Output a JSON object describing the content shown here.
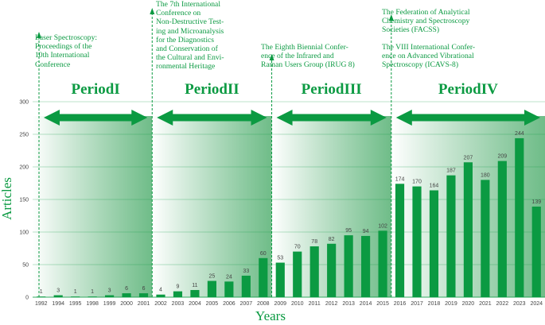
{
  "chart_data": {
    "type": "bar",
    "xlabel": "Years",
    "ylabel": "Articles",
    "ylim": [
      0,
      300
    ],
    "yticks": [
      0,
      50,
      100,
      150,
      200,
      250,
      300
    ],
    "grid": true,
    "categories": [
      "1992",
      "1994",
      "1995",
      "1998",
      "1999",
      "2000",
      "2001",
      "2002",
      "2003",
      "2004",
      "2005",
      "2006",
      "2007",
      "2008",
      "2009",
      "2010",
      "2011",
      "2012",
      "2013",
      "2014",
      "2015",
      "2016",
      "2017",
      "2018",
      "2019",
      "2020",
      "2021",
      "2022",
      "2023",
      "2024"
    ],
    "values": [
      1,
      3,
      1,
      1,
      3,
      6,
      6,
      4,
      9,
      11,
      25,
      24,
      33,
      60,
      53,
      70,
      78,
      82,
      95,
      94,
      102,
      174,
      170,
      164,
      187,
      207,
      180,
      209,
      244,
      139
    ],
    "bar_color": "#0b9a42",
    "periods": [
      {
        "label": "PeriodI",
        "start_index": 0,
        "end_index": 6
      },
      {
        "label": "PeriodII",
        "start_index": 7,
        "end_index": 13
      },
      {
        "label": "PeriodIII",
        "start_index": 14,
        "end_index": 20
      },
      {
        "label": "PeriodIV",
        "start_index": 21,
        "end_index": 29
      }
    ]
  },
  "annotations": {
    "a1": "Laser Spectroscopy:\nProceedings of the\n10th International\nConference",
    "a2": "The 7th International\nConference on\nNon-Destructive Test-\ning and Microanalysis\nfor the Diagnostics\nand Conservation of\nthe Cultural and Envi-\nronmental Heritage",
    "a3": "The Eighth Biennial Confer-\nence of the Infrared and\nRaman Users Group (IRUG 8)",
    "a4a": "The Federation of Analytical\nChemistry and Spectroscopy\nSocieties (FACSS)",
    "a4b": "The VIII International Confer-\nence on Advanced Vibrational\nSpectroscopy (ICAVS-8)"
  }
}
